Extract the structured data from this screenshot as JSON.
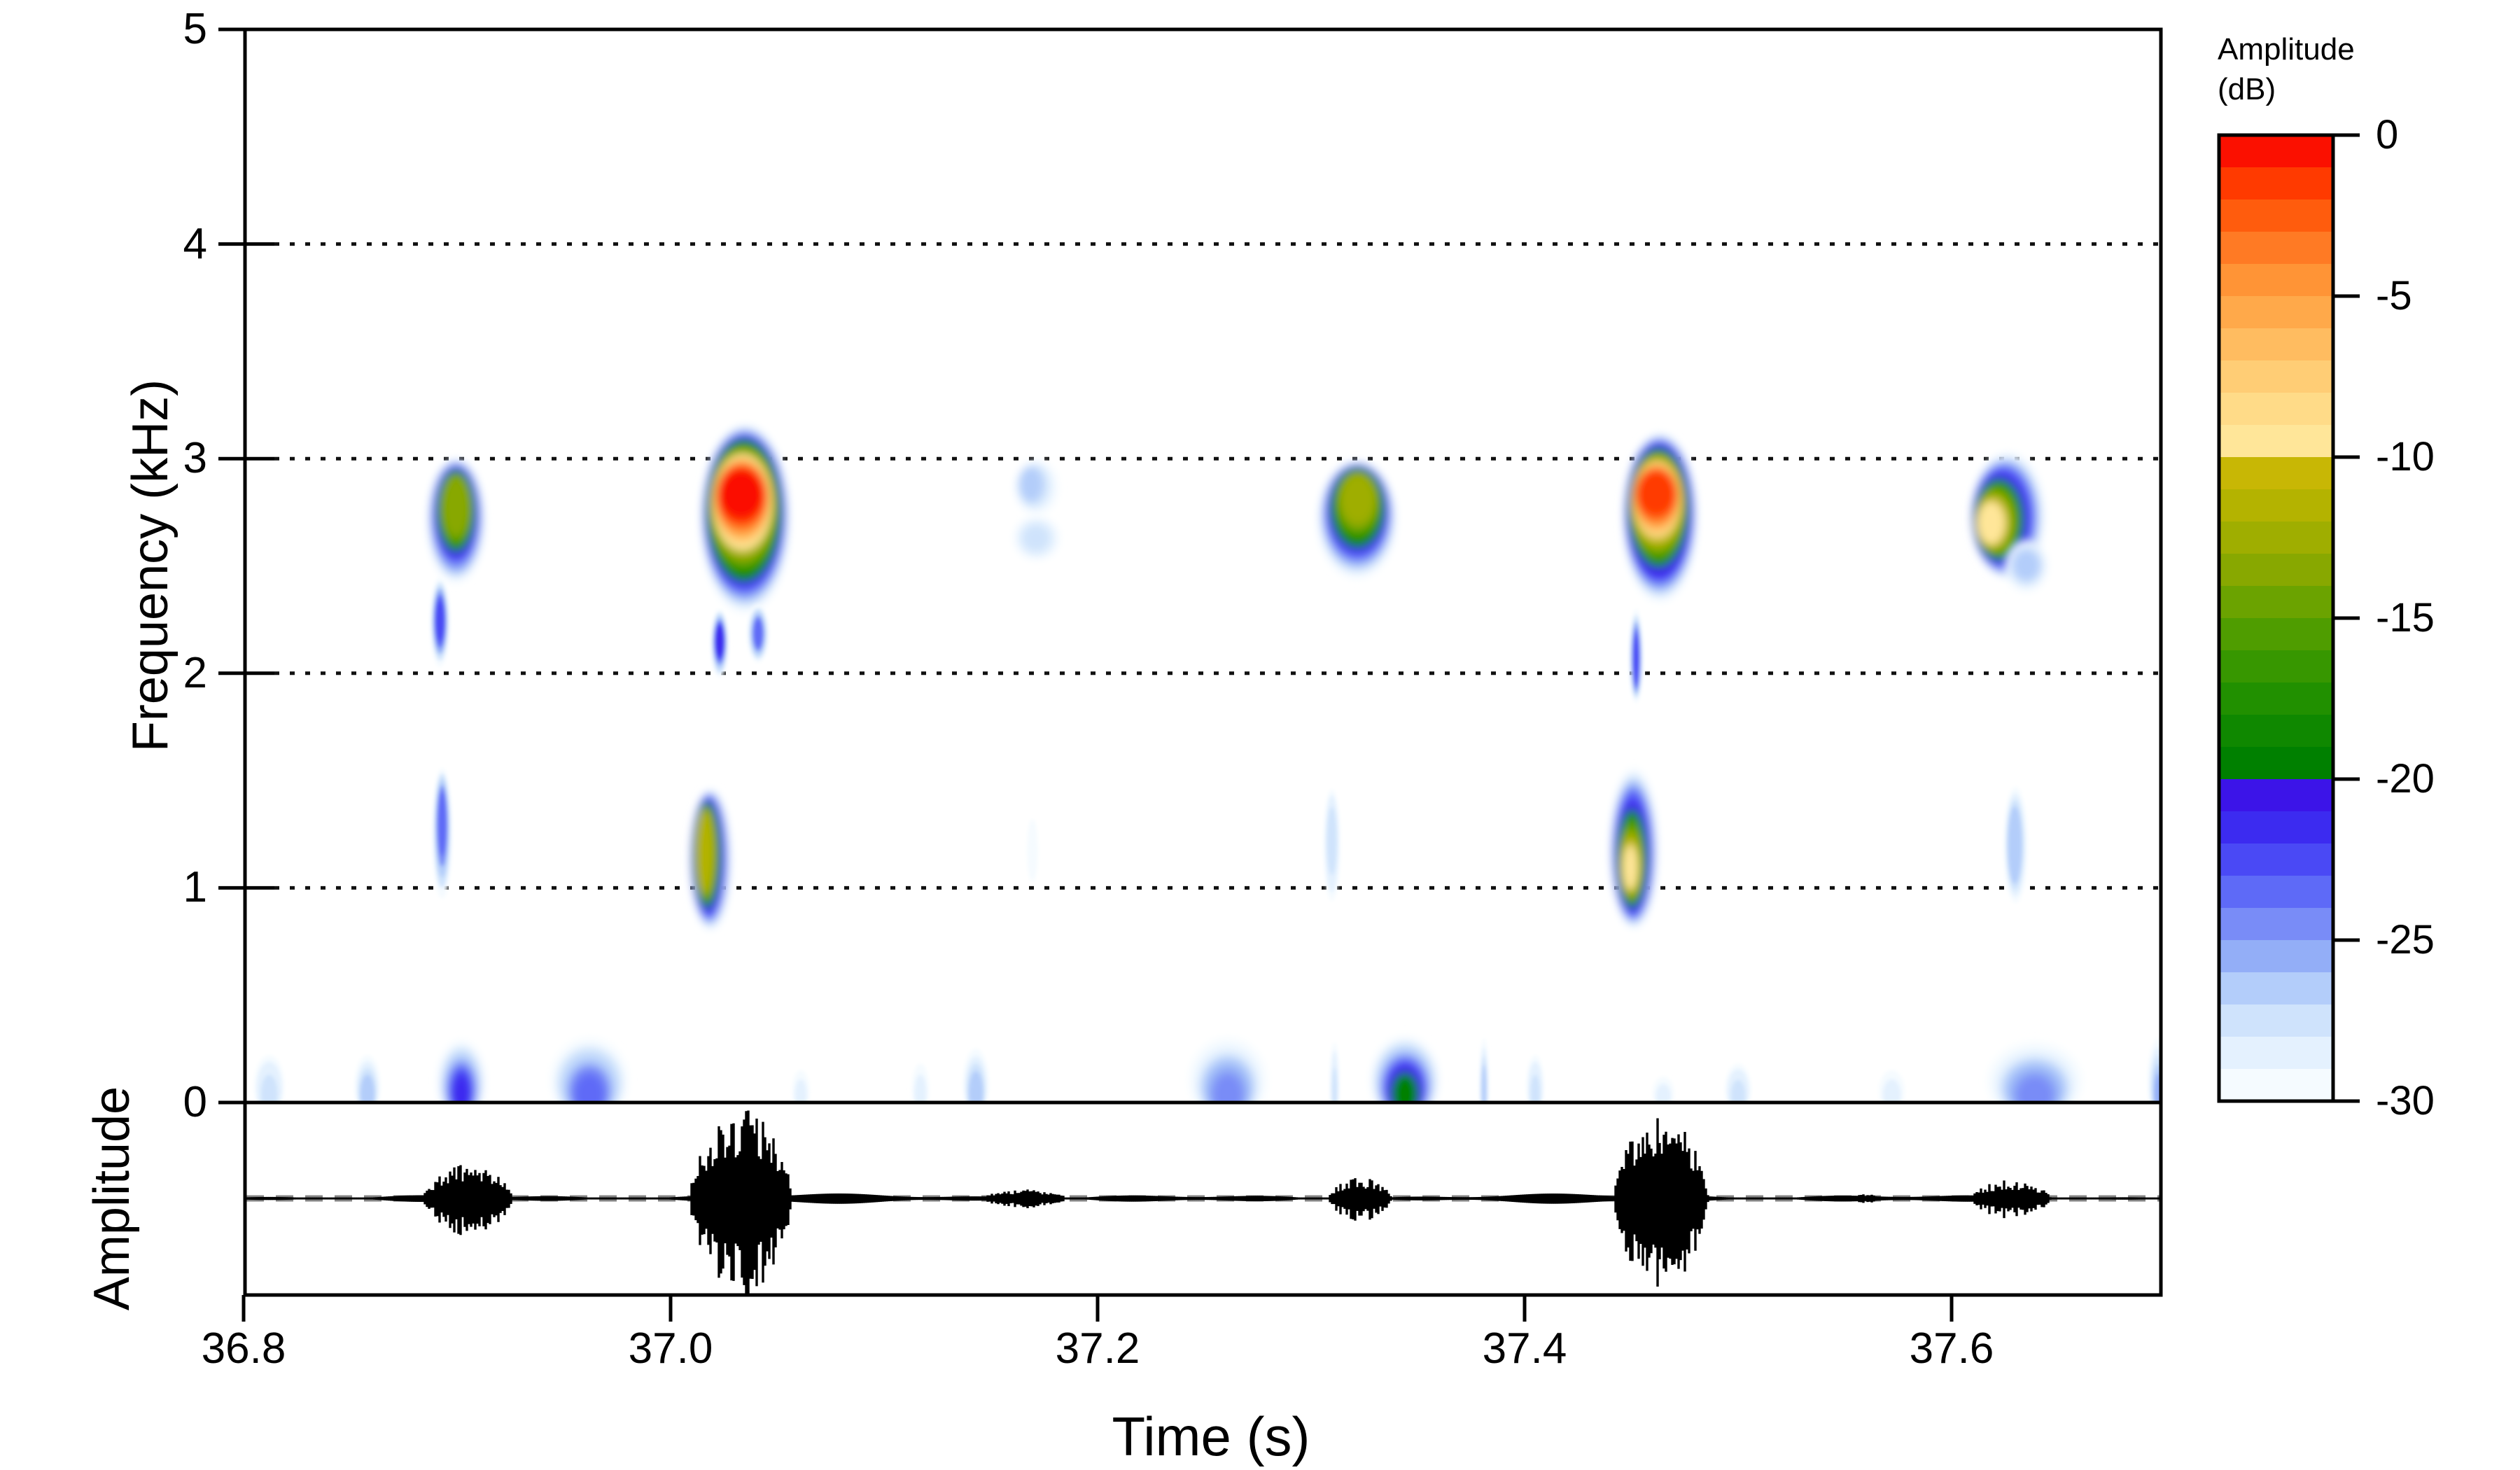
{
  "figure": {
    "background": "#ffffff",
    "axes": {
      "time": {
        "label": "Time (s)",
        "ticks": [
          "36.8",
          "37.0",
          "37.2",
          "37.4",
          "37.6"
        ],
        "tick_values": [
          36.8,
          37.0,
          37.2,
          37.4,
          37.6
        ],
        "range": [
          36.8,
          37.698
        ]
      },
      "frequency": {
        "label": "Frequency (kHz)",
        "ticks": [
          "0",
          "1",
          "2",
          "3",
          "4",
          "5"
        ],
        "tick_values": [
          0,
          1,
          2,
          3,
          4,
          5
        ],
        "range": [
          0,
          5
        ],
        "gridlines": [
          1,
          2,
          3,
          4
        ],
        "grid_style": "dotted"
      },
      "waveform": {
        "label": "Amplitude"
      }
    },
    "colorbar": {
      "title_lines": [
        "Amplitude",
        "(dB)"
      ],
      "ticks": [
        "0",
        "-5",
        "-10",
        "-15",
        "-20",
        "-25",
        "-30"
      ],
      "tick_values": [
        0,
        -5,
        -10,
        -15,
        -20,
        -25,
        -30
      ],
      "range": [
        0,
        -30
      ],
      "bands_db": 1,
      "colors": [
        "#fb1000",
        "#ff3a00",
        "#ff5c0d",
        "#ff7a24",
        "#ff9436",
        "#ffa94a",
        "#ffbc60",
        "#ffcd75",
        "#ffdb88",
        "#ffe699",
        "#c8b705",
        "#b4b300",
        "#9fae00",
        "#88a800",
        "#6ba300",
        "#4f9d00",
        "#379700",
        "#219000",
        "#0f8800",
        "#008000",
        "#3c14e8",
        "#3c2bf0",
        "#4a49f5",
        "#5e6af7",
        "#798cf7",
        "#93aef7",
        "#b3cdfa",
        "#cfe3fc",
        "#e4f1fe",
        "#f5fbff"
      ]
    },
    "chart_data": {
      "type": "heatmap",
      "subtype": "spectrogram-with-oscillogram",
      "title": "",
      "xlabel": "Time (s)",
      "ylabel": "Frequency (kHz)",
      "xlim": [
        36.8,
        37.698
      ],
      "ylim_khz": [
        0,
        5
      ],
      "amplitude_scale_db": [
        0,
        -30
      ],
      "grid": "dotted horizontal lines at 1,2,3,4 kHz",
      "legend_position": "right colorbar",
      "calls": [
        {
          "id": "call-1",
          "t_start": 36.886,
          "t_end": 36.913,
          "f_min_khz": 0.95,
          "f_max_khz": 3.0,
          "peak_db": -13,
          "components": [
            {
              "box": {
                "t0": 36.886,
                "t1": 36.913,
                "f0": 2.42,
                "f1": 3.0
              },
              "core": {
                "t0": 36.893,
                "t1": 36.906,
                "f0": 2.64,
                "f1": 2.92
              },
              "peak_db": -13
            },
            {
              "box": {
                "t0": 36.8875,
                "t1": 36.8965,
                "f0": 2.03,
                "f1": 2.45
              },
              "core": {
                "t0": 36.89,
                "t1": 36.894,
                "f0": 2.15,
                "f1": 2.34
              },
              "peak_db": -22
            },
            {
              "box": {
                "t0": 36.8885,
                "t1": 36.8975,
                "f0": 0.95,
                "f1": 1.56
              },
              "core": {
                "t0": 36.891,
                "t1": 36.895,
                "f0": 1.15,
                "f1": 1.45
              },
              "peak_db": -23
            }
          ]
        },
        {
          "id": "call-2",
          "t_start": 37.009,
          "t_end": 37.056,
          "f_min_khz": 0.8,
          "f_max_khz": 3.16,
          "peak_db": 0,
          "components": [
            {
              "box": {
                "t0": 37.014,
                "t1": 37.056,
                "f0": 2.28,
                "f1": 3.16
              },
              "core": {
                "t0": 37.0225,
                "t1": 37.0435,
                "f0": 2.72,
                "f1": 2.95
              },
              "peak_db": 0
            },
            {
              "box": {
                "t0": 37.019,
                "t1": 37.027,
                "f0": 1.98,
                "f1": 2.3
              },
              "core": {
                "t0": 37.021,
                "t1": 37.025,
                "f0": 2.08,
                "f1": 2.22
              },
              "peak_db": -21
            },
            {
              "box": {
                "t0": 37.036,
                "t1": 37.046,
                "f0": 2.05,
                "f1": 2.32
              },
              "core": {
                "t0": 37.039,
                "t1": 37.043,
                "f0": 2.12,
                "f1": 2.25
              },
              "peak_db": -23
            },
            {
              "box": {
                "t0": 37.009,
                "t1": 37.0285,
                "f0": 0.8,
                "f1": 1.46
              },
              "core": {
                "t0": 37.012,
                "t1": 37.02,
                "f0": 0.98,
                "f1": 1.36
              },
              "peak_db": -11
            }
          ]
        },
        {
          "id": "call-3",
          "t_start": 37.161,
          "t_end": 37.182,
          "f_min_khz": 1.03,
          "f_max_khz": 2.99,
          "peak_db": -26,
          "components": [
            {
              "box": {
                "t0": 37.1615,
                "t1": 37.1815,
                "f0": 2.74,
                "f1": 2.99
              },
              "core": {
                "t0": 37.164,
                "t1": 37.172,
                "f0": 2.82,
                "f1": 2.95
              },
              "peak_db": -26
            },
            {
              "box": {
                "t0": 37.161,
                "t1": 37.182,
                "f0": 2.53,
                "f1": 2.73
              },
              "core": {
                "t0": 37.166,
                "t1": 37.176,
                "f0": 2.58,
                "f1": 2.68
              },
              "peak_db": -27
            },
            {
              "box": {
                "t0": 37.167,
                "t1": 37.172,
                "f0": 1.03,
                "f1": 1.32
              },
              "core": {
                "t0": 37.168,
                "t1": 37.171,
                "f0": 1.1,
                "f1": 1.25
              },
              "peak_db": -29
            }
          ]
        },
        {
          "id": "call-4",
          "t_start": 37.303,
          "t_end": 37.34,
          "f_min_khz": 0.94,
          "f_max_khz": 2.99,
          "peak_db": -12,
          "components": [
            {
              "box": {
                "t0": 37.303,
                "t1": 37.34,
                "f0": 2.44,
                "f1": 2.99
              },
              "core": {
                "t0": 37.314,
                "t1": 37.33,
                "f0": 2.7,
                "f1": 2.93
              },
              "peak_db": -12
            },
            {
              "box": {
                "t0": 37.306,
                "t1": 37.3135,
                "f0": 0.94,
                "f1": 1.46
              },
              "core": {
                "t0": 37.308,
                "t1": 37.3115,
                "f0": 1.1,
                "f1": 1.35
              },
              "peak_db": -27
            }
          ]
        },
        {
          "id": "call-5",
          "t_start": 37.44,
          "t_end": 37.481,
          "f_min_khz": 0.81,
          "f_max_khz": 3.12,
          "peak_db": -1,
          "components": [
            {
              "box": {
                "t0": 37.446,
                "t1": 37.481,
                "f0": 2.33,
                "f1": 3.12
              },
              "core": {
                "t0": 37.4525,
                "t1": 37.4705,
                "f0": 2.74,
                "f1": 2.94
              },
              "peak_db": -1
            },
            {
              "box": {
                "t0": 37.449,
                "t1": 37.4555,
                "f0": 1.86,
                "f1": 2.3
              },
              "core": {
                "t0": 37.451,
                "t1": 37.4535,
                "f0": 1.95,
                "f1": 2.18
              },
              "peak_db": -22
            },
            {
              "box": {
                "t0": 37.44,
                "t1": 37.4625,
                "f0": 0.81,
                "f1": 1.56
              },
              "core": {
                "t0": 37.446,
                "t1": 37.453,
                "f0": 0.99,
                "f1": 1.2
              },
              "peak_db": -9
            }
          ]
        },
        {
          "id": "call-6",
          "t_start": 37.609,
          "t_end": 37.645,
          "f_min_khz": 0.93,
          "f_max_khz": 3.03,
          "peak_db": -9,
          "components": [
            {
              "box": {
                "t0": 37.609,
                "t1": 37.644,
                "f0": 2.44,
                "f1": 3.03
              },
              "core": {
                "t0": 37.612,
                "t1": 37.625,
                "f0": 2.6,
                "f1": 2.8
              },
              "peak_db": -9
            },
            {
              "box": {
                "t0": 37.625,
                "t1": 37.645,
                "f0": 2.38,
                "f1": 2.62
              },
              "core": {
                "t0": 37.63,
                "t1": 37.64,
                "f0": 2.45,
                "f1": 2.56
              },
              "peak_db": -26
            },
            {
              "box": {
                "t0": 37.6245,
                "t1": 37.6355,
                "f0": 0.93,
                "f1": 1.47
              },
              "core": {
                "t0": 37.627,
                "t1": 37.632,
                "f0": 1.05,
                "f1": 1.35
              },
              "peak_db": -26
            }
          ]
        }
      ],
      "noise_floor_bumps": [
        {
          "t": 36.812,
          "hw": 0.007,
          "f_top": 0.22,
          "peak_db": -27
        },
        {
          "t": 36.858,
          "hw": 0.006,
          "f_top": 0.22,
          "peak_db": -26
        },
        {
          "t": 36.902,
          "hw": 0.011,
          "f_top": 0.29,
          "peak_db": -21
        },
        {
          "t": 36.962,
          "hw": 0.018,
          "f_top": 0.3,
          "peak_db": -23
        },
        {
          "t": 37.061,
          "hw": 0.004,
          "f_top": 0.15,
          "peak_db": -28
        },
        {
          "t": 37.117,
          "hw": 0.004,
          "f_top": 0.18,
          "peak_db": -28
        },
        {
          "t": 37.143,
          "hw": 0.006,
          "f_top": 0.25,
          "peak_db": -26
        },
        {
          "t": 37.261,
          "hw": 0.018,
          "f_top": 0.3,
          "peak_db": -24
        },
        {
          "t": 37.311,
          "hw": 0.002,
          "f_top": 0.28,
          "peak_db": -27
        },
        {
          "t": 37.344,
          "hw": 0.016,
          "f_top": 0.31,
          "peak_db": -19
        },
        {
          "t": 37.381,
          "hw": 0.002,
          "f_top": 0.3,
          "peak_db": -26
        },
        {
          "t": 37.405,
          "hw": 0.004,
          "f_top": 0.22,
          "peak_db": -27
        },
        {
          "t": 37.465,
          "hw": 0.005,
          "f_top": 0.12,
          "peak_db": -28
        },
        {
          "t": 37.5,
          "hw": 0.006,
          "f_top": 0.18,
          "peak_db": -27
        },
        {
          "t": 37.572,
          "hw": 0.006,
          "f_top": 0.15,
          "peak_db": -28
        },
        {
          "t": 37.639,
          "hw": 0.022,
          "f_top": 0.28,
          "peak_db": -24
        },
        {
          "t": 37.697,
          "hw": 0.005,
          "f_top": 0.3,
          "peak_db": -25
        }
      ],
      "waveform": {
        "centerline": "dashed gray",
        "bursts": [
          {
            "t": 36.905,
            "dur": 0.042,
            "amp": 0.38
          },
          {
            "t": 37.033,
            "dur": 0.048,
            "amp": 1.0
          },
          {
            "t": 37.166,
            "dur": 0.04,
            "amp": 0.1
          },
          {
            "t": 37.323,
            "dur": 0.03,
            "amp": 0.24
          },
          {
            "t": 37.464,
            "dur": 0.044,
            "amp": 0.97
          },
          {
            "t": 37.56,
            "dur": 0.012,
            "amp": 0.05
          },
          {
            "t": 37.628,
            "dur": 0.037,
            "amp": 0.21
          }
        ]
      }
    }
  }
}
